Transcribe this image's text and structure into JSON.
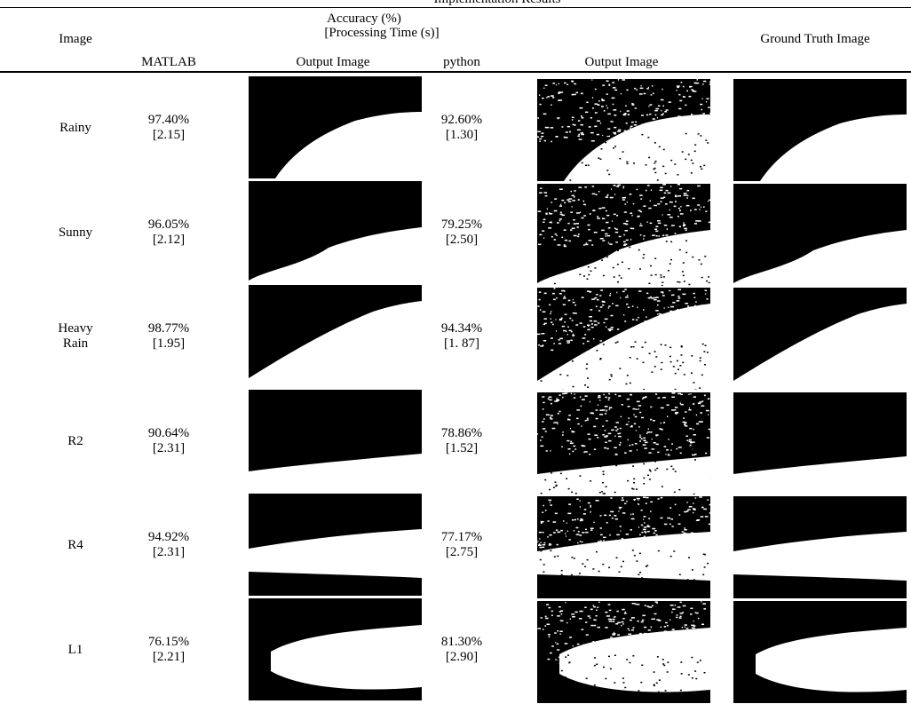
{
  "header": {
    "title": "Implementation Results",
    "accuracy": "Accuracy (%)",
    "time": "[Processing Time (s)]",
    "image": "Image",
    "ground_truth": "Ground Truth Image",
    "columns": [
      "MATLAB",
      "Output Image",
      "python",
      "Output Image"
    ]
  },
  "table": {
    "rows": [
      {
        "image": "Rainy",
        "matlab_accuracy": "97.40%",
        "matlab_time": "[2.15]",
        "python_accuracy": "92.60%",
        "python_time": "[1.30]"
      },
      {
        "image": "Sunny",
        "matlab_accuracy": "96.05%",
        "matlab_time": "[2.12]",
        "python_accuracy": "79.25%",
        "python_time": "[2.50]"
      },
      {
        "image": "Heavy Rain",
        "matlab_accuracy": "98.77%",
        "matlab_time": "[1.95]",
        "python_accuracy": "94.34%",
        "python_time": "[1. 87]"
      },
      {
        "image": "R2",
        "matlab_accuracy": "90.64%",
        "matlab_time": "[2.31]",
        "python_accuracy": "78.86%",
        "python_time": "[1.52]"
      },
      {
        "image": "R4",
        "matlab_accuracy": "94.92%",
        "matlab_time": "[2.31]",
        "python_accuracy": "77.17%",
        "python_time": "[2.75]"
      },
      {
        "image": "L1",
        "matlab_accuracy": "76.15%",
        "matlab_time": "[2.21]",
        "python_accuracy": "81.30%",
        "python_time": "[2.90]"
      }
    ]
  }
}
